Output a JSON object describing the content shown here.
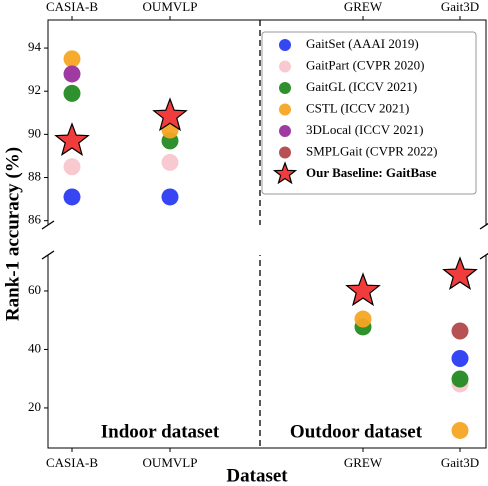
{
  "chart_data": {
    "type": "scatter",
    "x_label": "Dataset",
    "y_label": "Rank-1 accuracy (%)",
    "categories": [
      "CASIA-B",
      "OUMVLP",
      "GREW",
      "Gait3D"
    ],
    "annotations": [
      "Indoor dataset",
      "Outdoor dataset"
    ],
    "series": [
      {
        "name": "GaitSet (AAAI 2019)",
        "color": "#2b3cf2",
        "marker": "circle",
        "values": [
          87.1,
          87.1,
          null,
          36.9
        ]
      },
      {
        "name": "GaitPart (CVPR 2020)",
        "color": "#f8c6cd",
        "marker": "circle",
        "values": [
          88.5,
          88.7,
          null,
          28.2
        ]
      },
      {
        "name": "GaitGL (ICCV 2021)",
        "color": "#238b23",
        "marker": "circle",
        "values": [
          91.9,
          89.7,
          47.7,
          29.9
        ]
      },
      {
        "name": "CSTL (ICCV 2021)",
        "color": "#f6a623",
        "marker": "circle",
        "values": [
          93.5,
          90.2,
          50.4,
          12.3
        ]
      },
      {
        "name": "3DLocal (ICCV 2021)",
        "color": "#9a2f9e",
        "marker": "circle",
        "values": [
          92.8,
          null,
          null,
          null
        ]
      },
      {
        "name": "SMPLGait (CVPR 2022)",
        "color": "#b3494b",
        "marker": "circle",
        "values": [
          null,
          null,
          null,
          46.3
        ]
      },
      {
        "name": "Our Baseline: GaitBase",
        "color": "#f03c3c",
        "marker": "star",
        "values": [
          89.7,
          90.85,
          60.0,
          65.5
        ]
      }
    ],
    "ylim": [
      85.8,
      95.3
    ],
    "yticks": [
      86,
      88,
      90,
      92,
      94
    ],
    "y2lim": [
      6.3,
      72.3
    ],
    "y2ticks": [
      20,
      40,
      60
    ],
    "legend": "upper right"
  }
}
